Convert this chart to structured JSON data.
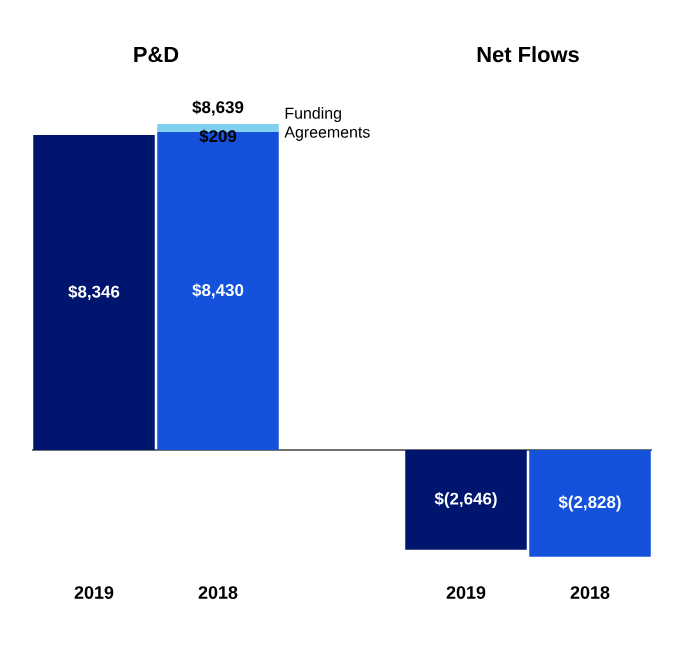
{
  "chart_data": [
    {
      "type": "bar",
      "title": "P&D",
      "categories": [
        "2019",
        "2018"
      ],
      "stacked": true,
      "series": [
        {
          "colors": [
            "#00166e",
            "#1452dc"
          ],
          "values": [
            8346,
            8430
          ],
          "value_labels": [
            "$8,346",
            "$8,430"
          ]
        },
        {
          "name": "Funding Agreements",
          "color": "#7fd0f0",
          "values": [
            null,
            209
          ],
          "value_labels": [
            null,
            "$209"
          ]
        }
      ],
      "totals": [
        null,
        "$8,639"
      ]
    },
    {
      "type": "bar",
      "title": "Net Flows",
      "categories": [
        "2019",
        "2018"
      ],
      "series": [
        {
          "colors": [
            "#00166e",
            "#1452dc"
          ],
          "values": [
            -2646,
            -2828
          ],
          "value_labels": [
            "$(2,646)",
            "$(2,828)"
          ]
        }
      ]
    }
  ]
}
